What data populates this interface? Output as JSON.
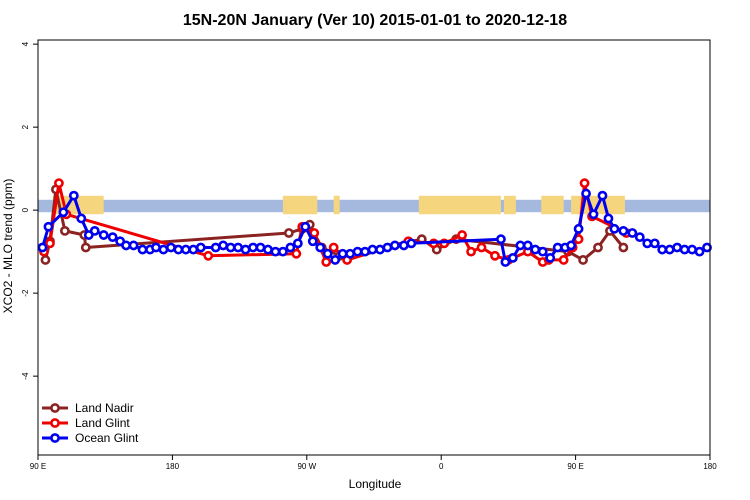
{
  "chart_data": {
    "type": "line",
    "title": "15N-20N January (Ver 10)   2015-01-01 to 2020-12-18",
    "xlabel": "Longitude",
    "ylabel": "XCO2 - MLO trend (ppm)",
    "xlim": [
      0,
      450
    ],
    "ylim": [
      -5.9,
      4.1
    ],
    "xticks": [
      {
        "value": 0,
        "label": "90 E"
      },
      {
        "value": 90,
        "label": "180"
      },
      {
        "value": 180,
        "label": "90 W"
      },
      {
        "value": 270,
        "label": "0"
      },
      {
        "value": 360,
        "label": "90 E"
      },
      {
        "value": 450,
        "label": "180"
      }
    ],
    "yticks": [
      {
        "value": 4,
        "label": "4"
      },
      {
        "value": 2,
        "label": "2"
      },
      {
        "value": 0,
        "label": "0"
      },
      {
        "value": -2,
        "label": "-2"
      },
      {
        "value": -4,
        "label": "-4"
      }
    ],
    "land_band": {
      "y_range": [
        -0.05,
        0.25
      ],
      "ocean_color": "#a5b8de",
      "land_color": "#f6d57f",
      "land_segments": [
        [
          10,
          44
        ],
        [
          164,
          166
        ],
        [
          173,
          174
        ],
        [
          166,
          187
        ],
        [
          198,
          202
        ],
        [
          255,
          310
        ],
        [
          312,
          320
        ],
        [
          337,
          352
        ],
        [
          357,
          393
        ]
      ]
    },
    "legend_position": "bottom-left",
    "series": [
      {
        "name": "Land Nadir",
        "color": "#8b2323",
        "points": [
          [
            5,
            -1.2
          ],
          [
            8,
            -0.75
          ],
          [
            12,
            0.5
          ],
          [
            18,
            -0.5
          ],
          [
            31,
            -0.6
          ],
          [
            32,
            -0.9
          ],
          [
            168,
            -0.55
          ],
          [
            177,
            -0.45
          ],
          [
            182,
            -0.35
          ],
          [
            190,
            -0.9
          ],
          [
            202,
            -1.1
          ],
          [
            257,
            -0.7
          ],
          [
            267,
            -0.95
          ],
          [
            280,
            -0.7
          ],
          [
            355,
            -1.0
          ],
          [
            365,
            -1.2
          ],
          [
            375,
            -0.9
          ],
          [
            383,
            -0.5
          ],
          [
            392,
            -0.9
          ]
        ]
      },
      {
        "name": "Land Glint",
        "color": "#ee0000",
        "points": [
          [
            4,
            -1.0
          ],
          [
            8,
            -0.8
          ],
          [
            14,
            0.65
          ],
          [
            19,
            -0.1
          ],
          [
            114,
            -1.1
          ],
          [
            173,
            -1.05
          ],
          [
            177,
            -0.4
          ],
          [
            185,
            -0.55
          ],
          [
            193,
            -1.25
          ],
          [
            198,
            -0.9
          ],
          [
            207,
            -1.2
          ],
          [
            248,
            -0.75
          ],
          [
            265,
            -0.8
          ],
          [
            272,
            -0.8
          ],
          [
            284,
            -0.6
          ],
          [
            290,
            -1.0
          ],
          [
            297,
            -0.9
          ],
          [
            306,
            -1.1
          ],
          [
            315,
            -1.2
          ],
          [
            328,
            -1.0
          ],
          [
            338,
            -1.25
          ],
          [
            342,
            -1.2
          ],
          [
            352,
            -1.2
          ],
          [
            358,
            -0.9
          ],
          [
            362,
            -0.7
          ],
          [
            366,
            0.65
          ],
          [
            371,
            -0.15
          ],
          [
            394,
            -0.55
          ]
        ]
      },
      {
        "name": "Ocean Glint",
        "color": "#0000ee",
        "points": [
          [
            3,
            -0.9
          ],
          [
            7,
            -0.4
          ],
          [
            17,
            -0.05
          ],
          [
            24,
            0.35
          ],
          [
            29,
            -0.2
          ],
          [
            34,
            -0.6
          ],
          [
            38,
            -0.5
          ],
          [
            44,
            -0.6
          ],
          [
            50,
            -0.65
          ],
          [
            55,
            -0.75
          ],
          [
            59,
            -0.85
          ],
          [
            64,
            -0.85
          ],
          [
            70,
            -0.95
          ],
          [
            75,
            -0.95
          ],
          [
            79,
            -0.9
          ],
          [
            84,
            -0.95
          ],
          [
            89,
            -0.9
          ],
          [
            94,
            -0.95
          ],
          [
            99,
            -0.95
          ],
          [
            104,
            -0.95
          ],
          [
            109,
            -0.9
          ],
          [
            119,
            -0.9
          ],
          [
            124,
            -0.85
          ],
          [
            129,
            -0.9
          ],
          [
            134,
            -0.9
          ],
          [
            139,
            -0.95
          ],
          [
            144,
            -0.9
          ],
          [
            149,
            -0.9
          ],
          [
            154,
            -0.95
          ],
          [
            159,
            -1.0
          ],
          [
            164,
            -1.0
          ],
          [
            169,
            -0.9
          ],
          [
            174,
            -0.8
          ],
          [
            179,
            -0.4
          ],
          [
            184,
            -0.75
          ],
          [
            189,
            -0.9
          ],
          [
            194,
            -1.05
          ],
          [
            199,
            -1.2
          ],
          [
            204,
            -1.05
          ],
          [
            209,
            -1.05
          ],
          [
            214,
            -1.0
          ],
          [
            219,
            -1.0
          ],
          [
            224,
            -0.95
          ],
          [
            229,
            -0.95
          ],
          [
            234,
            -0.9
          ],
          [
            239,
            -0.85
          ],
          [
            245,
            -0.85
          ],
          [
            250,
            -0.8
          ],
          [
            310,
            -0.7
          ],
          [
            313,
            -1.25
          ],
          [
            318,
            -1.15
          ],
          [
            323,
            -0.85
          ],
          [
            328,
            -0.85
          ],
          [
            333,
            -0.95
          ],
          [
            338,
            -1.0
          ],
          [
            343,
            -1.15
          ],
          [
            348,
            -0.9
          ],
          [
            353,
            -0.9
          ],
          [
            357,
            -0.85
          ],
          [
            362,
            -0.45
          ],
          [
            367,
            0.4
          ],
          [
            372,
            -0.1
          ],
          [
            378,
            0.35
          ],
          [
            382,
            -0.2
          ],
          [
            386,
            -0.45
          ],
          [
            392,
            -0.5
          ],
          [
            398,
            -0.55
          ],
          [
            403,
            -0.65
          ],
          [
            408,
            -0.8
          ],
          [
            413,
            -0.8
          ],
          [
            418,
            -0.95
          ],
          [
            423,
            -0.95
          ],
          [
            428,
            -0.9
          ],
          [
            433,
            -0.95
          ],
          [
            438,
            -0.95
          ],
          [
            443,
            -1.0
          ],
          [
            448,
            -0.9
          ]
        ]
      }
    ]
  }
}
